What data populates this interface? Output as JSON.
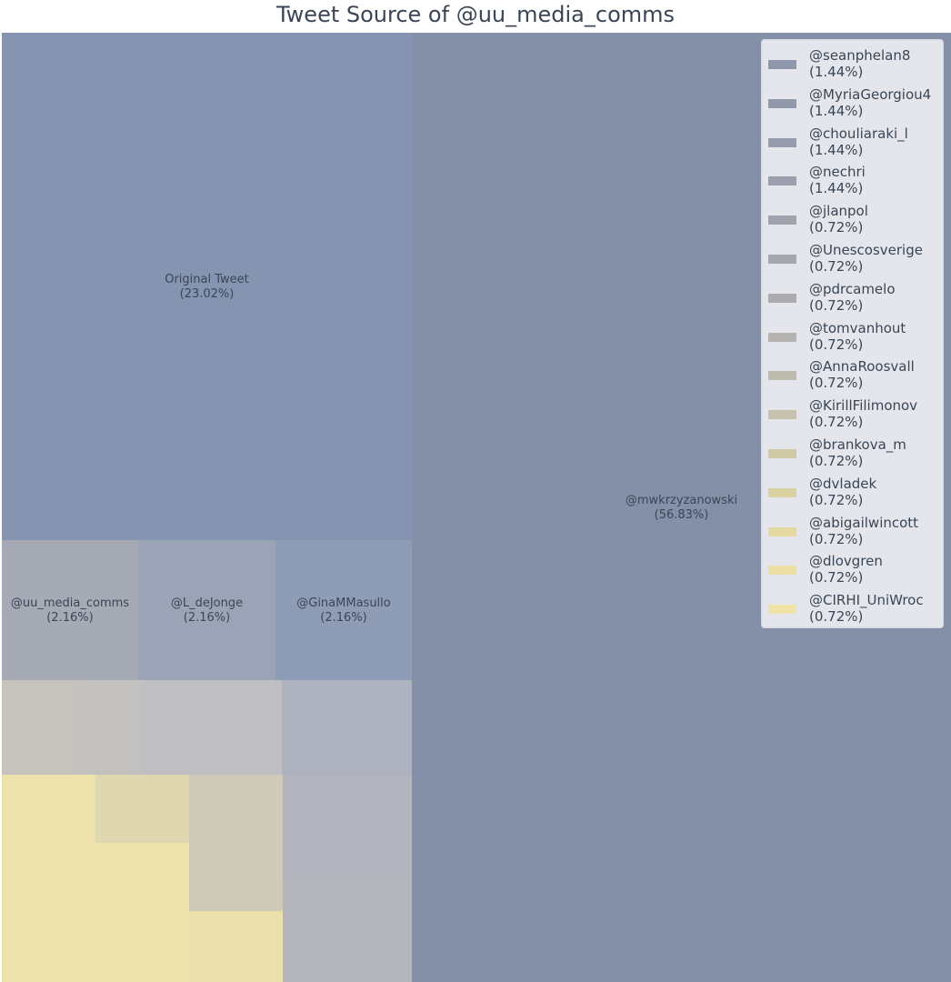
{
  "chart_data": {
    "type": "treemap",
    "title": "Tweet Source of @uu_media_comms",
    "labeled_tiles": [
      {
        "name": "@mwkrzyzanowski",
        "percent": "(56.83%)",
        "value": 56.83,
        "color": "#8390a8"
      },
      {
        "name": "Original Tweet",
        "percent": "(23.02%)",
        "value": 23.02,
        "color": "#8595b1"
      },
      {
        "name": "@uu_media_comms",
        "percent": "(2.16%)",
        "value": 2.16,
        "color": "#a6aab4"
      },
      {
        "name": "@L_deJonge",
        "percent": "(2.16%)",
        "value": 2.16,
        "color": "#9ba3b7"
      },
      {
        "name": "@GinaMMasullo",
        "percent": "(2.16%)",
        "value": 2.16,
        "color": "#8e9cb6"
      }
    ],
    "small_tiles": [
      {
        "value": 0.72,
        "color": "#c6c3bc"
      },
      {
        "value": 0.72,
        "color": "#c3c1bf"
      },
      {
        "value": 1.44,
        "color": "#bfbfc2"
      },
      {
        "value": 1.44,
        "color": "#aeb1be"
      },
      {
        "value": 0.72,
        "color": "#ede2ac"
      },
      {
        "value": 0.72,
        "color": "#dfd7b0"
      },
      {
        "value": 1.44,
        "color": "#cdcab8"
      },
      {
        "value": 1.44,
        "color": "#b3b4bd"
      },
      {
        "value": 1.44,
        "color": "#eee2ab"
      },
      {
        "value": 0.72,
        "color": "#ebe0ac"
      },
      {
        "value": 0.72,
        "color": "#d6d0b3"
      },
      {
        "value": 1.44,
        "color": "#b5b6bd"
      }
    ],
    "legend": [
      {
        "name": "@seanphelan8",
        "percent": "(1.44%)",
        "color": "#8e97ab"
      },
      {
        "name": "@MyriaGeorgiou4",
        "percent": "(1.44%)",
        "color": "#9299ab"
      },
      {
        "name": "@chouliaraki_l",
        "percent": "(1.44%)",
        "color": "#969cad"
      },
      {
        "name": "@nechri",
        "percent": "(1.44%)",
        "color": "#9c9fae"
      },
      {
        "name": "@jlanpol",
        "percent": "(0.72%)",
        "color": "#a0a2ad"
      },
      {
        "name": "@Unescosverige",
        "percent": "(0.72%)",
        "color": "#a6a7ae"
      },
      {
        "name": "@pdrcamelo",
        "percent": "(0.72%)",
        "color": "#acacaf"
      },
      {
        "name": "@tomvanhout",
        "percent": "(0.72%)",
        "color": "#b4b3b0"
      },
      {
        "name": "@AnnaRoosvall",
        "percent": "(0.72%)",
        "color": "#bdbaae"
      },
      {
        "name": "@KirillFilimonov",
        "percent": "(0.72%)",
        "color": "#c6c2ab"
      },
      {
        "name": "@brankova_m",
        "percent": "(0.72%)",
        "color": "#d0c9a6"
      },
      {
        "name": "@dvladek",
        "percent": "(0.72%)",
        "color": "#dad1a3"
      },
      {
        "name": "@abigailwincott",
        "percent": "(0.72%)",
        "color": "#e4d9a2"
      },
      {
        "name": "@dlovgren",
        "percent": "(0.72%)",
        "color": "#ecdfa4"
      },
      {
        "name": "@CIRHI_UniWroc",
        "percent": "(0.72%)",
        "color": "#efe3a8"
      }
    ]
  }
}
